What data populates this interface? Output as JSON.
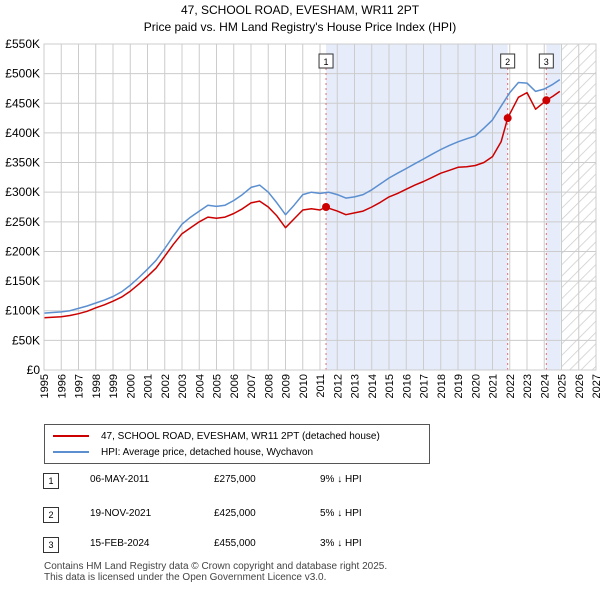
{
  "chart_data": {
    "type": "line",
    "title": "47, SCHOOL ROAD, EVESHAM, WR11 2PT",
    "subtitle": "Price paid vs. HM Land Registry's House Price Index (HPI)",
    "xlabel": "",
    "ylabel": "",
    "xlim": [
      1995,
      2027
    ],
    "ylim": [
      0,
      550000
    ],
    "x_ticks": [
      1995,
      1996,
      1997,
      1998,
      1999,
      2000,
      2001,
      2002,
      2003,
      2004,
      2005,
      2006,
      2007,
      2008,
      2009,
      2010,
      2011,
      2012,
      2013,
      2014,
      2015,
      2016,
      2017,
      2018,
      2019,
      2020,
      2021,
      2022,
      2023,
      2024,
      2025,
      2026,
      2027
    ],
    "x_tick_labels": [
      "1995",
      "1996",
      "1997",
      "1998",
      "1999",
      "2000",
      "2001",
      "2002",
      "2003",
      "2004",
      "2005",
      "2006",
      "2007",
      "2008",
      "2009",
      "2010",
      "2011",
      "2012",
      "2013",
      "2014",
      "2015",
      "2016",
      "2017",
      "2018",
      "2019",
      "2020",
      "2021",
      "2022",
      "2023",
      "2024",
      "2025",
      "2026",
      "2027"
    ],
    "y_ticks": [
      0,
      50000,
      100000,
      150000,
      200000,
      250000,
      300000,
      350000,
      400000,
      450000,
      500000,
      550000
    ],
    "y_tick_labels": [
      "£0",
      "£50K",
      "£100K",
      "£150K",
      "£200K",
      "£250K",
      "£300K",
      "£350K",
      "£400K",
      "£450K",
      "£500K",
      "£550K"
    ],
    "grid": true,
    "legend_position": "bottom",
    "shaded_periods": [
      {
        "from": 2011.35,
        "to": 2021.88
      },
      {
        "from": 2024.12,
        "to": 2024.95
      }
    ],
    "forecast_hatch": {
      "from": 2025.0,
      "to": 2027
    },
    "series": [
      {
        "name": "47, SCHOOL ROAD, EVESHAM, WR11 2PT (detached house)",
        "color": "#cc0000",
        "x": [
          1995.0,
          1995.5,
          1996.0,
          1996.5,
          1997.0,
          1997.5,
          1998.0,
          1998.5,
          1999.0,
          1999.5,
          2000.0,
          2000.5,
          2001.0,
          2001.5,
          2002.0,
          2002.5,
          2003.0,
          2003.5,
          2004.0,
          2004.5,
          2005.0,
          2005.5,
          2006.0,
          2006.5,
          2007.0,
          2007.5,
          2008.0,
          2008.5,
          2009.0,
          2009.5,
          2010.0,
          2010.5,
          2011.0,
          2011.35,
          2011.5,
          2012.0,
          2012.5,
          2013.0,
          2013.5,
          2014.0,
          2014.5,
          2015.0,
          2015.5,
          2016.0,
          2016.5,
          2017.0,
          2017.5,
          2018.0,
          2018.5,
          2019.0,
          2019.5,
          2020.0,
          2020.5,
          2021.0,
          2021.5,
          2021.88,
          2022.0,
          2022.5,
          2023.0,
          2023.5,
          2024.0,
          2024.12,
          2024.5,
          2024.9
        ],
        "values": [
          88000,
          89000,
          90000,
          92000,
          95000,
          99000,
          105000,
          110000,
          116000,
          123000,
          133000,
          145000,
          158000,
          172000,
          192000,
          212000,
          230000,
          240000,
          250000,
          258000,
          256000,
          258000,
          264000,
          272000,
          282000,
          285000,
          275000,
          260000,
          240000,
          255000,
          270000,
          272000,
          270000,
          275000,
          273000,
          268000,
          262000,
          265000,
          268000,
          275000,
          283000,
          292000,
          298000,
          305000,
          312000,
          318000,
          325000,
          332000,
          337000,
          342000,
          343000,
          345000,
          350000,
          360000,
          385000,
          425000,
          432000,
          460000,
          468000,
          440000,
          452000,
          455000,
          462000,
          470000
        ]
      },
      {
        "name": "HPI: Average price, detached house, Wychavon",
        "color": "#5b8fd0",
        "x": [
          1995.0,
          1995.5,
          1996.0,
          1996.5,
          1997.0,
          1997.5,
          1998.0,
          1998.5,
          1999.0,
          1999.5,
          2000.0,
          2000.5,
          2001.0,
          2001.5,
          2002.0,
          2002.5,
          2003.0,
          2003.5,
          2004.0,
          2004.5,
          2005.0,
          2005.5,
          2006.0,
          2006.5,
          2007.0,
          2007.5,
          2008.0,
          2008.5,
          2009.0,
          2009.5,
          2010.0,
          2010.5,
          2011.0,
          2011.5,
          2012.0,
          2012.5,
          2013.0,
          2013.5,
          2014.0,
          2014.5,
          2015.0,
          2015.5,
          2016.0,
          2016.5,
          2017.0,
          2017.5,
          2018.0,
          2018.5,
          2019.0,
          2019.5,
          2020.0,
          2020.5,
          2021.0,
          2021.5,
          2022.0,
          2022.5,
          2023.0,
          2023.5,
          2024.0,
          2024.5,
          2024.9
        ],
        "values": [
          96000,
          97000,
          98000,
          100000,
          104000,
          108000,
          113000,
          118000,
          124000,
          132000,
          143000,
          156000,
          170000,
          185000,
          205000,
          226000,
          246000,
          258000,
          268000,
          278000,
          276000,
          278000,
          286000,
          296000,
          308000,
          312000,
          300000,
          282000,
          262000,
          278000,
          296000,
          300000,
          298000,
          300000,
          296000,
          290000,
          292000,
          296000,
          304000,
          314000,
          324000,
          332000,
          340000,
          348000,
          356000,
          364000,
          372000,
          379000,
          385000,
          390000,
          395000,
          408000,
          422000,
          445000,
          468000,
          485000,
          484000,
          470000,
          474000,
          482000,
          490000
        ]
      }
    ],
    "markers": [
      {
        "label": "1",
        "x": 2011.35,
        "value": 275000
      },
      {
        "label": "2",
        "x": 2021.88,
        "value": 425000
      },
      {
        "label": "3",
        "x": 2024.12,
        "value": 455000
      }
    ]
  },
  "legend": {
    "red_label": "47, SCHOOL ROAD, EVESHAM, WR11 2PT (detached house)",
    "blue_label": "HPI: Average price, detached house, Wychavon"
  },
  "sales": [
    {
      "num": "1",
      "date": "06-MAY-2011",
      "price": "£275,000",
      "hpi": "9% ↓ HPI"
    },
    {
      "num": "2",
      "date": "19-NOV-2021",
      "price": "£425,000",
      "hpi": "5% ↓ HPI"
    },
    {
      "num": "3",
      "date": "15-FEB-2024",
      "price": "£455,000",
      "hpi": "3% ↓ HPI"
    }
  ],
  "footer": {
    "line1": "Contains HM Land Registry data © Crown copyright and database right 2025.",
    "line2": "This data is licensed under the Open Government Licence v3.0."
  }
}
